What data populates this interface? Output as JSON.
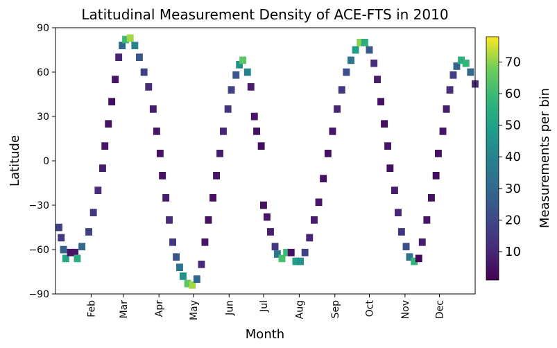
{
  "chart_data": {
    "type": "heatmap",
    "title": "Latitudinal Measurement Density of ACE-FTS in 2010",
    "xlabel": "Month",
    "ylabel": "Latitude",
    "xlim": [
      0,
      365
    ],
    "ylim": [
      -90,
      90
    ],
    "month_ticks": [
      {
        "label": "Feb",
        "day": 31
      },
      {
        "label": "Mar",
        "day": 59
      },
      {
        "label": "Apr",
        "day": 90
      },
      {
        "label": "May",
        "day": 120
      },
      {
        "label": "Jun",
        "day": 151
      },
      {
        "label": "Jul",
        "day": 181
      },
      {
        "label": "Aug",
        "day": 212
      },
      {
        "label": "Sep",
        "day": 243
      },
      {
        "label": "Oct",
        "day": 273
      },
      {
        "label": "Nov",
        "day": 304
      },
      {
        "label": "Dec",
        "day": 334
      }
    ],
    "yticks": [
      -90,
      -60,
      -30,
      0,
      30,
      60,
      90
    ],
    "ytick_labels": [
      "−90",
      "−60",
      "−30",
      "0",
      "30",
      "60",
      "90"
    ],
    "colorbar": {
      "label": "Measurements per bin",
      "range": [
        1,
        78
      ],
      "ticks": [
        10,
        20,
        30,
        40,
        50,
        60,
        70
      ],
      "colormap": "viridis"
    },
    "bin_width_days": 6,
    "bin_height_deg": 5,
    "track_points": [
      {
        "day": 0,
        "lat": -45,
        "val": 18
      },
      {
        "day": 2,
        "lat": -52,
        "val": 15
      },
      {
        "day": 4,
        "lat": -60,
        "val": 28
      },
      {
        "day": 6,
        "lat": -66,
        "val": 52
      },
      {
        "day": 10,
        "lat": -62,
        "val": 5
      },
      {
        "day": 14,
        "lat": -62,
        "val": 6
      },
      {
        "day": 16,
        "lat": -66,
        "val": 55
      },
      {
        "day": 20,
        "lat": -58,
        "val": 30
      },
      {
        "day": 26,
        "lat": -48,
        "val": 18
      },
      {
        "day": 30,
        "lat": -35,
        "val": 15
      },
      {
        "day": 34,
        "lat": -20,
        "val": 12
      },
      {
        "day": 38,
        "lat": -5,
        "val": 8
      },
      {
        "day": 40,
        "lat": 10,
        "val": 6
      },
      {
        "day": 43,
        "lat": 25,
        "val": 5
      },
      {
        "day": 46,
        "lat": 40,
        "val": 4
      },
      {
        "day": 49,
        "lat": 55,
        "val": 6
      },
      {
        "day": 52,
        "lat": 70,
        "val": 10
      },
      {
        "day": 55,
        "lat": 78,
        "val": 30
      },
      {
        "day": 58,
        "lat": 82,
        "val": 60
      },
      {
        "day": 62,
        "lat": 83,
        "val": 72
      },
      {
        "day": 66,
        "lat": 78,
        "val": 40
      },
      {
        "day": 70,
        "lat": 70,
        "val": 25
      },
      {
        "day": 74,
        "lat": 60,
        "val": 18
      },
      {
        "day": 78,
        "lat": 50,
        "val": 12
      },
      {
        "day": 82,
        "lat": 35,
        "val": 8
      },
      {
        "day": 85,
        "lat": 20,
        "val": 6
      },
      {
        "day": 88,
        "lat": 5,
        "val": 5
      },
      {
        "day": 90,
        "lat": -10,
        "val": 5
      },
      {
        "day": 93,
        "lat": -25,
        "val": 8
      },
      {
        "day": 96,
        "lat": -40,
        "val": 12
      },
      {
        "day": 99,
        "lat": -55,
        "val": 15
      },
      {
        "day": 102,
        "lat": -65,
        "val": 25
      },
      {
        "day": 105,
        "lat": -72,
        "val": 35
      },
      {
        "day": 108,
        "lat": -78,
        "val": 45
      },
      {
        "day": 112,
        "lat": -83,
        "val": 65
      },
      {
        "day": 116,
        "lat": -84,
        "val": 72
      },
      {
        "day": 120,
        "lat": -80,
        "val": 30
      },
      {
        "day": 124,
        "lat": -70,
        "val": 12
      },
      {
        "day": 127,
        "lat": -55,
        "val": 6
      },
      {
        "day": 130,
        "lat": -40,
        "val": 5
      },
      {
        "day": 134,
        "lat": -25,
        "val": 5
      },
      {
        "day": 137,
        "lat": -10,
        "val": 6
      },
      {
        "day": 140,
        "lat": 5,
        "val": 8
      },
      {
        "day": 143,
        "lat": 20,
        "val": 10
      },
      {
        "day": 147,
        "lat": 35,
        "val": 14
      },
      {
        "day": 150,
        "lat": 48,
        "val": 18
      },
      {
        "day": 154,
        "lat": 58,
        "val": 25
      },
      {
        "day": 157,
        "lat": 65,
        "val": 45
      },
      {
        "day": 160,
        "lat": 68,
        "val": 65
      },
      {
        "day": 164,
        "lat": 60,
        "val": 40
      },
      {
        "day": 167,
        "lat": 50,
        "val": 8
      },
      {
        "day": 170,
        "lat": 30,
        "val": 6
      },
      {
        "day": 172,
        "lat": 20,
        "val": 5
      },
      {
        "day": 176,
        "lat": 10,
        "val": 4
      },
      {
        "day": 178,
        "lat": -30,
        "val": 5
      },
      {
        "day": 181,
        "lat": -38,
        "val": 6
      },
      {
        "day": 184,
        "lat": -48,
        "val": 8
      },
      {
        "day": 188,
        "lat": -58,
        "val": 15
      },
      {
        "day": 190,
        "lat": -63,
        "val": 35
      },
      {
        "day": 194,
        "lat": -66,
        "val": 62
      },
      {
        "day": 198,
        "lat": -62,
        "val": 60
      },
      {
        "day": 202,
        "lat": -62,
        "val": 5
      },
      {
        "day": 206,
        "lat": -68,
        "val": 50
      },
      {
        "day": 210,
        "lat": -68,
        "val": 45
      },
      {
        "day": 214,
        "lat": -62,
        "val": 18
      },
      {
        "day": 218,
        "lat": -52,
        "val": 10
      },
      {
        "day": 222,
        "lat": -40,
        "val": 8
      },
      {
        "day": 226,
        "lat": -28,
        "val": 6
      },
      {
        "day": 230,
        "lat": -12,
        "val": 5
      },
      {
        "day": 234,
        "lat": 5,
        "val": 5
      },
      {
        "day": 238,
        "lat": 20,
        "val": 6
      },
      {
        "day": 242,
        "lat": 35,
        "val": 10
      },
      {
        "day": 246,
        "lat": 48,
        "val": 15
      },
      {
        "day": 250,
        "lat": 60,
        "val": 22
      },
      {
        "day": 254,
        "lat": 68,
        "val": 35
      },
      {
        "day": 258,
        "lat": 75,
        "val": 50
      },
      {
        "day": 262,
        "lat": 80,
        "val": 70
      },
      {
        "day": 266,
        "lat": 80,
        "val": 55
      },
      {
        "day": 270,
        "lat": 75,
        "val": 25
      },
      {
        "day": 274,
        "lat": 66,
        "val": 12
      },
      {
        "day": 277,
        "lat": 55,
        "val": 8
      },
      {
        "day": 280,
        "lat": 40,
        "val": 5
      },
      {
        "day": 283,
        "lat": 25,
        "val": 5
      },
      {
        "day": 286,
        "lat": 10,
        "val": 6
      },
      {
        "day": 288,
        "lat": -5,
        "val": 5
      },
      {
        "day": 292,
        "lat": -20,
        "val": 8
      },
      {
        "day": 295,
        "lat": -35,
        "val": 10
      },
      {
        "day": 298,
        "lat": -48,
        "val": 14
      },
      {
        "day": 302,
        "lat": -58,
        "val": 22
      },
      {
        "day": 305,
        "lat": -65,
        "val": 35
      },
      {
        "day": 309,
        "lat": -68,
        "val": 58
      },
      {
        "day": 313,
        "lat": -66,
        "val": 3
      },
      {
        "day": 316,
        "lat": -55,
        "val": 8
      },
      {
        "day": 320,
        "lat": -40,
        "val": 6
      },
      {
        "day": 324,
        "lat": -25,
        "val": 5
      },
      {
        "day": 328,
        "lat": -10,
        "val": 4
      },
      {
        "day": 330,
        "lat": 5,
        "val": 5
      },
      {
        "day": 334,
        "lat": 20,
        "val": 6
      },
      {
        "day": 337,
        "lat": 35,
        "val": 8
      },
      {
        "day": 340,
        "lat": 48,
        "val": 12
      },
      {
        "day": 343,
        "lat": 58,
        "val": 18
      },
      {
        "day": 346,
        "lat": 64,
        "val": 28
      },
      {
        "day": 350,
        "lat": 68,
        "val": 55
      },
      {
        "day": 354,
        "lat": 66,
        "val": 58
      },
      {
        "day": 358,
        "lat": 60,
        "val": 30
      },
      {
        "day": 362,
        "lat": 52,
        "val": 12
      }
    ]
  }
}
